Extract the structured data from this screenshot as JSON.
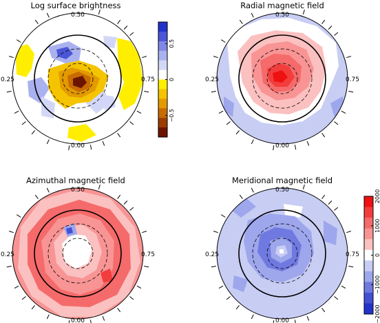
{
  "colors": {
    "blue_deep": "#2233cc",
    "blue_light": "#c8cdf4",
    "red_deep": "#ee1111",
    "red_light": "#f6c7c7",
    "yellow": "#ffee00",
    "orange": "#dd7a00",
    "brown": "#6b1500"
  },
  "chart_data": [
    {
      "type": "heatmap",
      "title": "Log surface brightness",
      "projection": "polar",
      "phase_labels": {
        "top": "0.50",
        "left": "0.25",
        "right": "0.75",
        "bottom": "0.00"
      },
      "colorbar": {
        "ticks": [
          0.5,
          0,
          -0.5
        ],
        "tick_labels": [
          "0.5",
          "0",
          "−0.5"
        ],
        "range": [
          -0.8,
          0.8
        ],
        "colors_top_to_bottom": [
          "#2233cc",
          "#4a56d6",
          "#7f88e4",
          "#aab1ef",
          "#d3d7f7",
          "#ffffff",
          "#ffee00",
          "#f5c400",
          "#e39a00",
          "#c86b00",
          "#9c3d00",
          "#6b1500"
        ]
      },
      "features": [
        {
          "kind": "dark spot",
          "value": -0.7,
          "location": "near pole, extending toward phase 0.25 and 0.75"
        },
        {
          "kind": "bright spot",
          "value": 0.5,
          "location": "mid-latitude near phase 0.45"
        },
        {
          "kind": "dark patches",
          "value": -0.2,
          "location": "low latitude near phases 0.25 and 0.75"
        }
      ]
    },
    {
      "type": "heatmap",
      "title": "Radial magnetic field",
      "projection": "polar",
      "phase_labels": {
        "top": "0.50",
        "left": "0.25",
        "right": "0.75",
        "bottom": "0.00"
      },
      "features": [
        {
          "kind": "positive field",
          "value": 1800,
          "location": "polar cap"
        },
        {
          "kind": "negative field",
          "value": -600,
          "location": "low-latitude ring"
        }
      ]
    },
    {
      "type": "heatmap",
      "title": "Azimuthal magnetic field",
      "projection": "polar",
      "phase_labels": {
        "top": "0.50",
        "left": "0.25",
        "right": "0.75",
        "bottom": "0.00"
      },
      "features": [
        {
          "kind": "positive field",
          "value": 1000,
          "location": "mid latitudes, all phases"
        },
        {
          "kind": "near zero",
          "value": 0,
          "location": "pole"
        },
        {
          "kind": "negative spot",
          "value": -600,
          "location": "near phase 0.45, high latitude"
        }
      ]
    },
    {
      "type": "heatmap",
      "title": "Meridional magnetic field",
      "projection": "polar",
      "phase_labels": {
        "top": "0.50",
        "left": "0.25",
        "right": "0.75",
        "bottom": "0.00"
      },
      "colorbar": {
        "ticks": [
          2000,
          1000,
          0,
          -1000,
          -2000
        ],
        "tick_labels": [
          "2000",
          "1000",
          "0",
          "−1000",
          "−2000"
        ],
        "range": [
          -2000,
          2000
        ],
        "colors_top_to_bottom": [
          "#ee1111",
          "#f23d3d",
          "#f56a6a",
          "#f89494",
          "#fbc0c0",
          "#ffffff",
          "#c8cdf4",
          "#9ea6ec",
          "#7079e0",
          "#4450d4",
          "#2233cc"
        ]
      },
      "features": [
        {
          "kind": "negative field",
          "value": -500,
          "location": "whole disc, weak"
        },
        {
          "kind": "negative field",
          "value": -1000,
          "location": "high latitudes around pole"
        },
        {
          "kind": "near zero",
          "value": 0,
          "location": "pole"
        }
      ]
    }
  ]
}
